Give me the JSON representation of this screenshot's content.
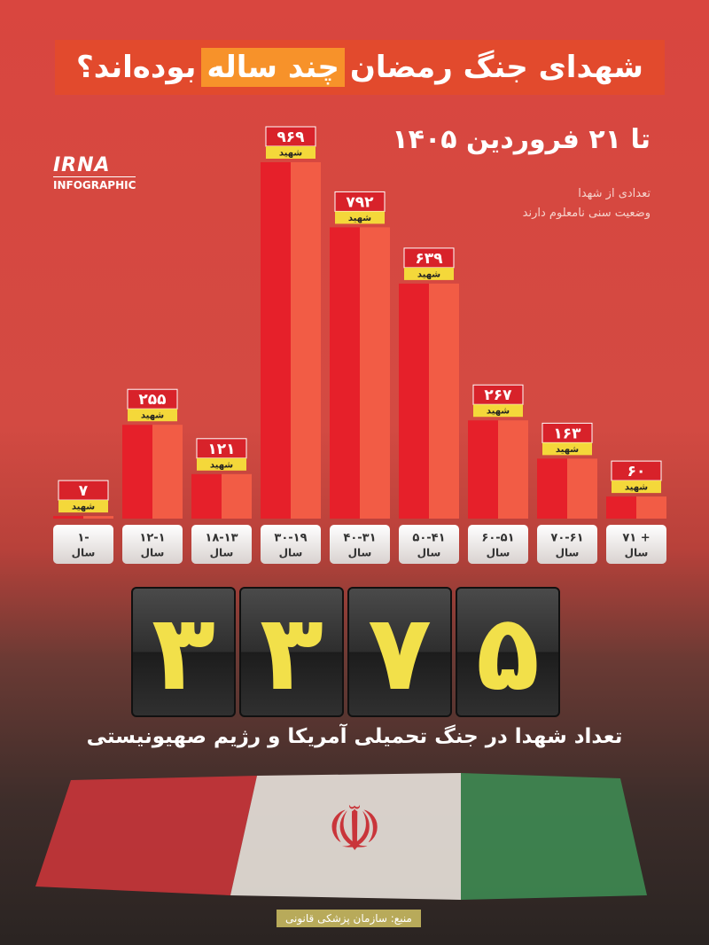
{
  "header": {
    "title_parts": [
      "شهدای جنگ رمضان",
      "چند ساله",
      "بوده‌اند؟"
    ],
    "date": "تا ۲۱ فروردین ۱۴۰۵",
    "note": [
      "تعدادی از شهدا",
      "وضعیت سنی نامعلوم دارند"
    ]
  },
  "logo": {
    "name": "IRNA",
    "label": "INFOGRAPHIC"
  },
  "chart_data": {
    "type": "bar",
    "categories": [
      "۱-",
      "۱۲-۱",
      "۱۸-۱۳",
      "۳۰-۱۹",
      "۴۰-۳۱",
      "۵۰-۴۱",
      "۶۰-۵۱",
      "۷۰-۶۱",
      "۷۱ +"
    ],
    "category_unit": "سال",
    "values": [
      7,
      255,
      121,
      969,
      792,
      639,
      267,
      163,
      60
    ],
    "value_labels": [
      "۷",
      "۲۵۵",
      "۱۲۱",
      "۹۶۹",
      "۷۹۲",
      "۶۳۹",
      "۲۶۷",
      "۱۶۳",
      "۶۰"
    ],
    "value_unit": "شهید",
    "color": "#e6202a",
    "shade_color": "#f25c45"
  },
  "counter": {
    "digits": [
      "۳",
      "۳",
      "۷",
      "۵"
    ],
    "caption": "تعداد شهدا در جنگ تحمیلی آمریکا و رژیم صهیونیستی"
  },
  "source": "منبع: سازمان پزشکی قانونی"
}
